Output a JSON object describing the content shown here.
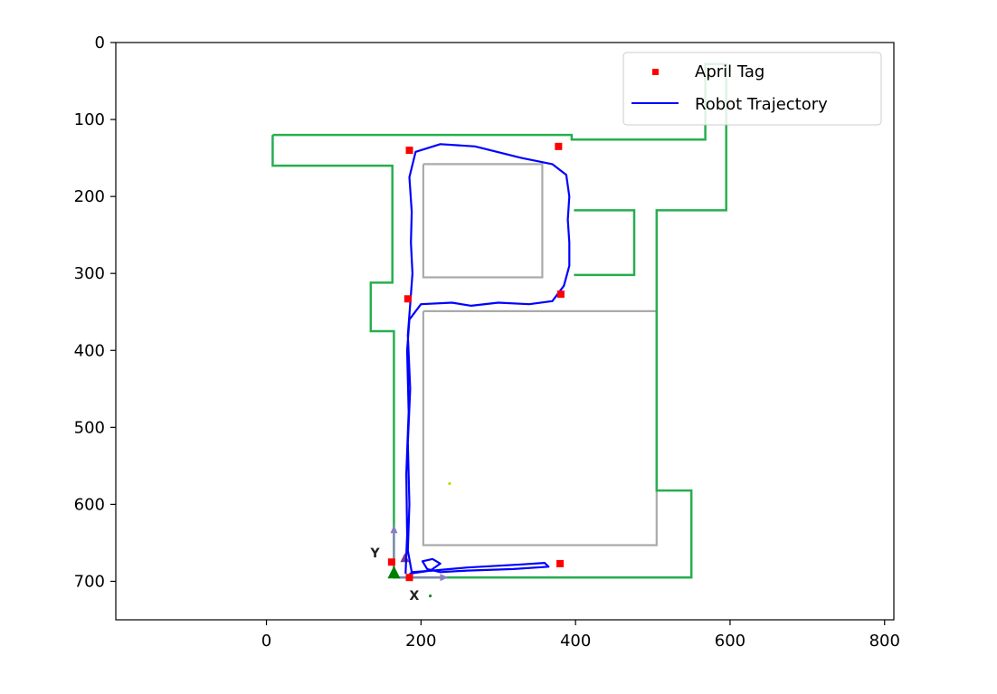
{
  "chart_data": {
    "type": "line",
    "xlim": [
      -195,
      812
    ],
    "ylim": [
      750,
      0
    ],
    "x_ticks": [
      0,
      200,
      400,
      600,
      800
    ],
    "y_ticks": [
      0,
      100,
      200,
      300,
      400,
      500,
      600,
      700
    ],
    "grid": false,
    "legend": {
      "placement": "top-right",
      "entries": [
        {
          "label": "April Tag",
          "marker": "square",
          "color": "#ff0000"
        },
        {
          "label": "Robot Trajectory",
          "marker": "line",
          "color": "#0000ff"
        }
      ]
    },
    "series": [
      {
        "name": "April Tag",
        "type": "scatter",
        "color": "#ff0000",
        "points": [
          [
            185,
            140
          ],
          [
            378,
            135
          ],
          [
            183,
            333
          ],
          [
            381,
            327
          ],
          [
            162,
            675
          ],
          [
            185,
            695
          ],
          [
            380,
            677
          ]
        ]
      },
      {
        "name": "Robot Trajectory",
        "type": "line",
        "color": "#0000ff",
        "points": [
          [
            180,
            690
          ],
          [
            182,
            640
          ],
          [
            181,
            560
          ],
          [
            184,
            480
          ],
          [
            182,
            400
          ],
          [
            185,
            360
          ],
          [
            200,
            340
          ],
          [
            240,
            338
          ],
          [
            265,
            342
          ],
          [
            300,
            338
          ],
          [
            340,
            340
          ],
          [
            370,
            336
          ],
          [
            385,
            316
          ],
          [
            392,
            290
          ],
          [
            392,
            260
          ],
          [
            390,
            230
          ],
          [
            392,
            200
          ],
          [
            388,
            172
          ],
          [
            370,
            158
          ],
          [
            330,
            150
          ],
          [
            270,
            135
          ],
          [
            225,
            132
          ],
          [
            193,
            142
          ],
          [
            185,
            175
          ],
          [
            188,
            220
          ],
          [
            187,
            260
          ],
          [
            189,
            300
          ],
          [
            186,
            340
          ],
          [
            183,
            380
          ],
          [
            186,
            450
          ],
          [
            183,
            520
          ],
          [
            185,
            600
          ],
          [
            183,
            660
          ],
          [
            188,
            688
          ],
          [
            215,
            686
          ],
          [
            260,
            682
          ],
          [
            330,
            678
          ],
          [
            360,
            676
          ],
          [
            365,
            681
          ],
          [
            320,
            684
          ],
          [
            260,
            686
          ],
          [
            225,
            688
          ],
          [
            208,
            684
          ],
          [
            202,
            674
          ],
          [
            215,
            671
          ],
          [
            225,
            677
          ],
          [
            212,
            686
          ],
          [
            185,
            690
          ]
        ]
      }
    ],
    "map_outline": {
      "walls": [
        [
          [
            8,
            120
          ],
          [
            395,
            120
          ],
          [
            395,
            126
          ],
          [
            568,
            126
          ],
          [
            568,
            28
          ],
          [
            595,
            28
          ],
          [
            595,
            218
          ],
          [
            505,
            218
          ],
          [
            505,
            582
          ],
          [
            550,
            582
          ],
          [
            550,
            695
          ],
          [
            165,
            695
          ],
          [
            165,
            375
          ],
          [
            135,
            375
          ],
          [
            135,
            312
          ],
          [
            163,
            312
          ],
          [
            163,
            160
          ],
          [
            8,
            160
          ],
          [
            8,
            120
          ]
        ],
        [
          [
            398,
            218
          ],
          [
            476,
            218
          ],
          [
            476,
            302
          ],
          [
            398,
            302
          ]
        ]
      ],
      "wall_color": "#27ae4f",
      "obstacles": [
        [
          [
            203,
            158
          ],
          [
            357,
            158
          ],
          [
            357,
            305
          ],
          [
            203,
            305
          ],
          [
            203,
            158
          ]
        ],
        [
          [
            203,
            349
          ],
          [
            505,
            349
          ],
          [
            505,
            653
          ],
          [
            203,
            653
          ],
          [
            203,
            349
          ]
        ]
      ],
      "obstacle_color": "#aaaaaa",
      "origin": {
        "x": 165,
        "y": 695,
        "marker_color": "#008000",
        "axis_color": "#8a7fc0",
        "x_label": "X",
        "y_label": "Y"
      },
      "stray_points": [
        [
          237,
          573
        ],
        [
          212,
          719
        ]
      ]
    }
  }
}
